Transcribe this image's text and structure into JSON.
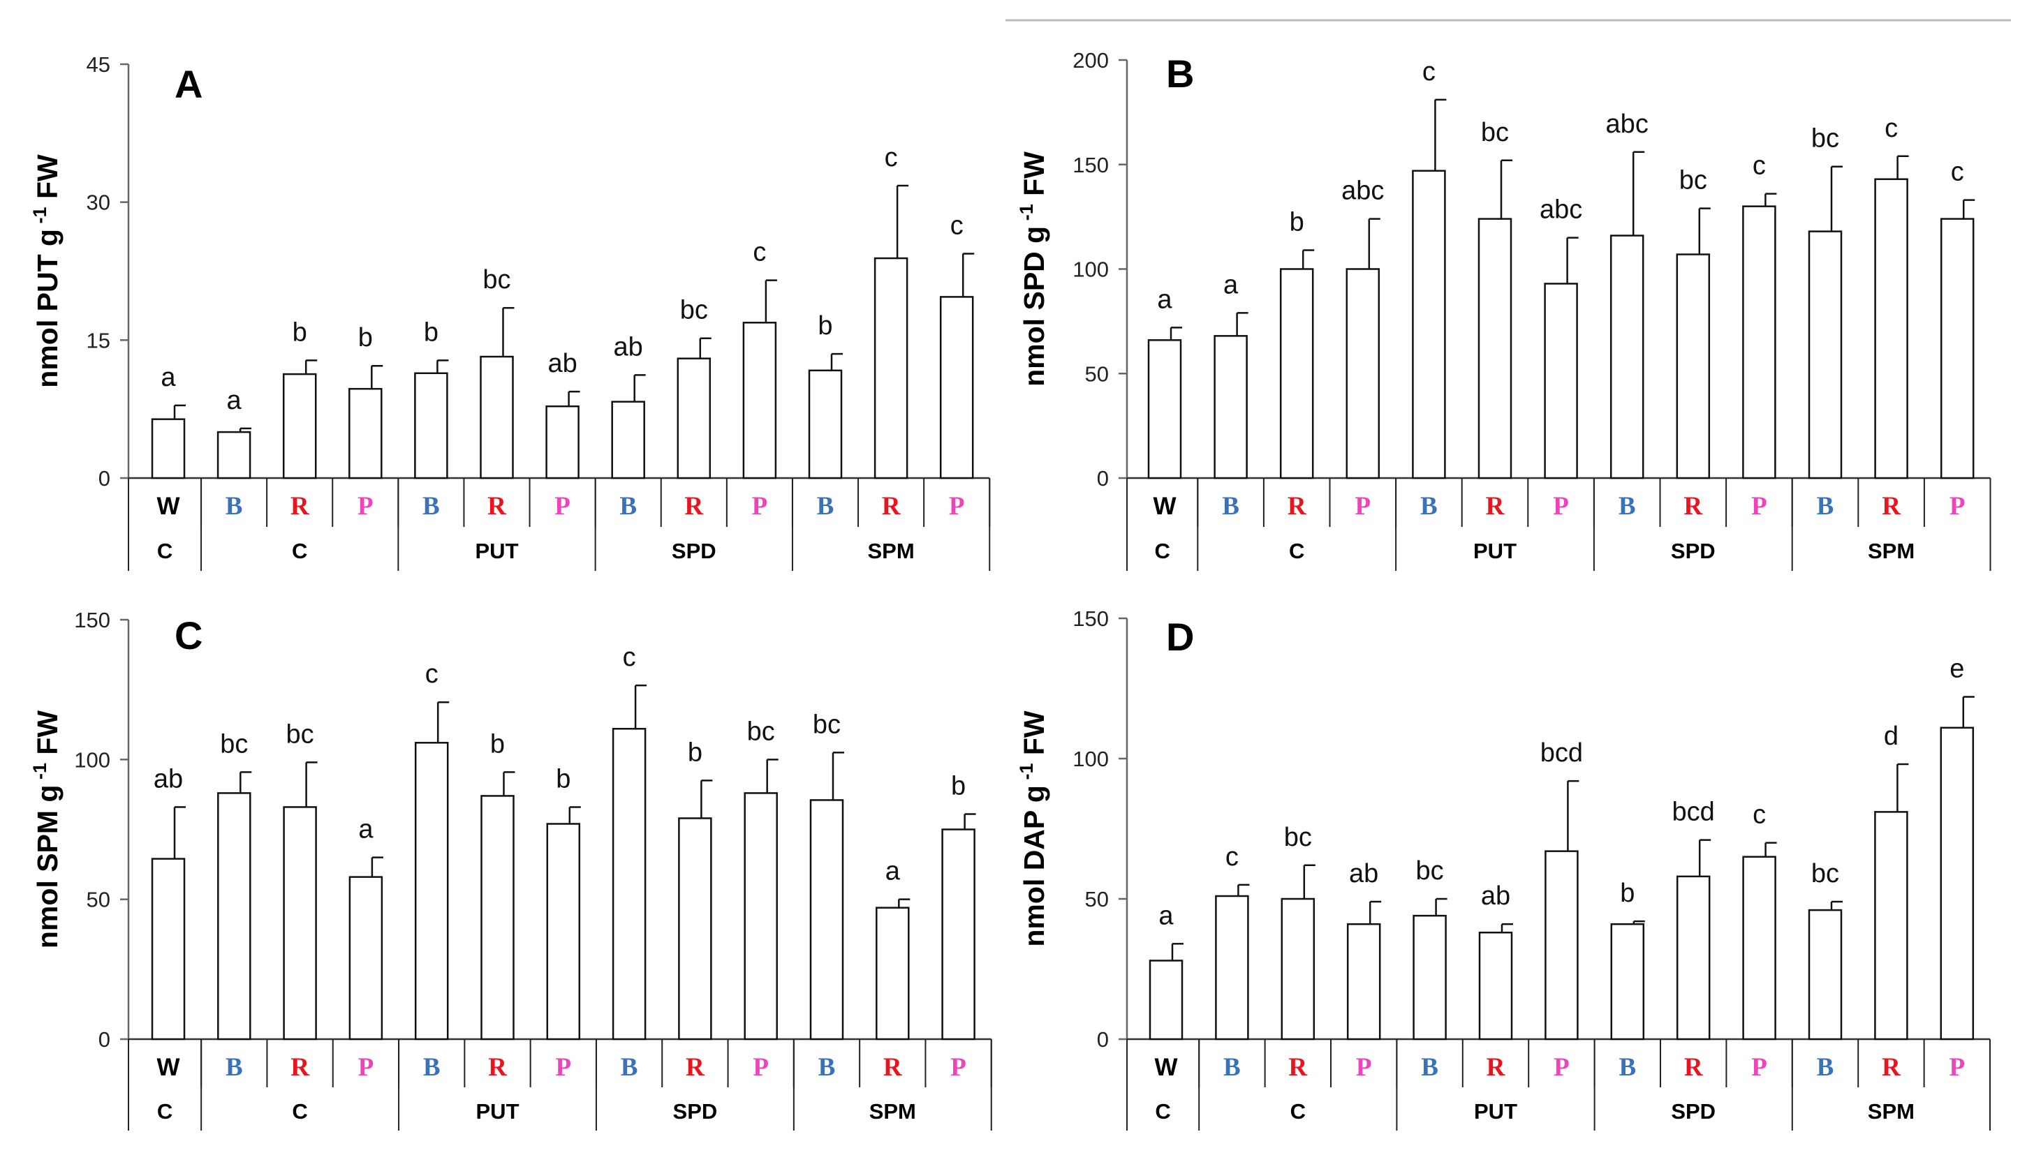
{
  "figure": {
    "group_labels": [
      "C",
      "C",
      "PUT",
      "SPD",
      "SPM"
    ],
    "light_colors": {
      "W": "#000000",
      "B": "#3a72b8",
      "R": "#e8141e",
      "P": "#ee44bb"
    }
  },
  "chart_data": [
    {
      "panel": "A",
      "type": "bar",
      "ylabel_main": "nmol PUT g",
      "ylabel_sup": "-1",
      "ylabel_tail": " FW",
      "ylim": [
        0,
        45
      ],
      "yticks": [
        0,
        15,
        30,
        45
      ],
      "categories": [
        "W",
        "B",
        "R",
        "P",
        "B",
        "R",
        "P",
        "B",
        "R",
        "P",
        "B",
        "R",
        "P"
      ],
      "values": [
        6.4,
        5.0,
        11.3,
        9.7,
        11.4,
        13.2,
        7.8,
        8.3,
        13.0,
        16.9,
        11.7,
        23.9,
        19.7
      ],
      "errors": [
        1.5,
        0.4,
        1.5,
        2.5,
        1.4,
        5.3,
        1.6,
        2.9,
        2.2,
        4.6,
        1.8,
        7.9,
        4.7
      ],
      "significance": [
        "a",
        "a",
        "b",
        "b",
        "b",
        "bc",
        "ab",
        "ab",
        "bc",
        "c",
        "b",
        "c",
        "c"
      ]
    },
    {
      "panel": "B",
      "type": "bar",
      "ylabel_main": "nmol SPD g",
      "ylabel_sup": "-1",
      "ylabel_tail": " FW",
      "ylim": [
        0,
        200
      ],
      "yticks": [
        0,
        50,
        100,
        150,
        200
      ],
      "categories": [
        "W",
        "B",
        "R",
        "P",
        "B",
        "R",
        "P",
        "B",
        "R",
        "P",
        "B",
        "R",
        "P"
      ],
      "values": [
        66,
        68,
        100,
        100,
        147,
        124,
        93,
        116,
        107,
        130,
        118,
        143,
        124
      ],
      "errors": [
        6,
        11,
        9,
        24,
        34,
        28,
        22,
        40,
        22,
        6,
        31,
        11,
        9
      ],
      "significance": [
        "a",
        "a",
        "b",
        "abc",
        "c",
        "bc",
        "abc",
        "abc",
        "bc",
        "c",
        "bc",
        "c",
        "c"
      ]
    },
    {
      "panel": "C",
      "type": "bar",
      "ylabel_main": "nmol SPM g",
      "ylabel_sup": "-1",
      "ylabel_tail": " FW",
      "ylim": [
        0,
        150
      ],
      "yticks": [
        0,
        50,
        100,
        150
      ],
      "categories": [
        "W",
        "B",
        "R",
        "P",
        "B",
        "R",
        "P",
        "B",
        "R",
        "P",
        "B",
        "R",
        "P"
      ],
      "values": [
        64.5,
        88,
        83,
        58,
        106,
        87,
        77,
        111,
        79,
        88,
        85.5,
        47,
        75
      ],
      "errors": [
        18.5,
        7.5,
        16,
        7,
        14.5,
        8.5,
        6,
        15.5,
        13.5,
        12,
        17,
        3,
        5.5
      ],
      "significance": [
        "ab",
        "bc",
        "bc",
        "a",
        "c",
        "b",
        "b",
        "c",
        "b",
        "bc",
        "bc",
        "a",
        "b"
      ]
    },
    {
      "panel": "D",
      "type": "bar",
      "ylabel_main": "nmol DAP g",
      "ylabel_sup": "-1",
      "ylabel_tail": " FW",
      "ylim": [
        0,
        150
      ],
      "yticks": [
        0,
        50,
        100,
        150
      ],
      "categories": [
        "W",
        "B",
        "R",
        "P",
        "B",
        "R",
        "P",
        "B",
        "R",
        "P",
        "B",
        "R",
        "P"
      ],
      "values": [
        28,
        51,
        50,
        41,
        44,
        38,
        67,
        41,
        58,
        65,
        46,
        81,
        111
      ],
      "errors": [
        6,
        4,
        12,
        8,
        6,
        3,
        25,
        1,
        13,
        5,
        3,
        17,
        11
      ],
      "significance": [
        "a",
        "c",
        "bc",
        "ab",
        "bc",
        "ab",
        "bcd",
        "b",
        "bcd",
        "c",
        "bc",
        "d",
        "e"
      ]
    }
  ]
}
